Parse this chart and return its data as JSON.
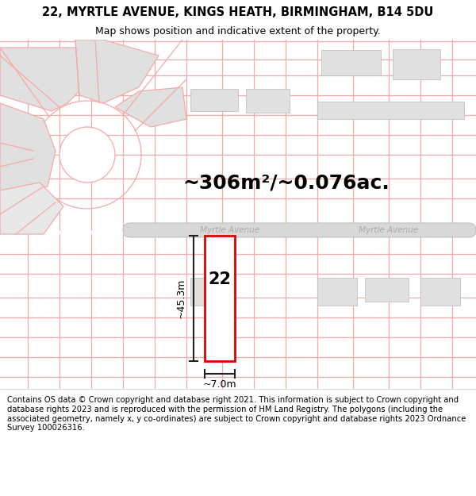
{
  "title": "22, MYRTLE AVENUE, KINGS HEATH, BIRMINGHAM, B14 5DU",
  "subtitle": "Map shows position and indicative extent of the property.",
  "footer": "Contains OS data © Crown copyright and database right 2021. This information is subject to Crown copyright and database rights 2023 and is reproduced with the permission of HM Land Registry. The polygons (including the associated geometry, namely x, y co-ordinates) are subject to Crown copyright and database rights 2023 Ordnance Survey 100026316.",
  "area_label": "~306m²/~0.076ac.",
  "road_label": "Myrtle Avenue",
  "road_label2": "Myrtle Avenue",
  "property_number": "22",
  "dim_height": "~45.3m",
  "dim_width": "~7.0m",
  "bg_color": "#ffffff",
  "map_bg": "#ffffff",
  "grid_line_color": "#f5aaaa",
  "property_outline_color": "#dd0000",
  "dim_line_color": "#222222",
  "title_fontsize": 10.5,
  "subtitle_fontsize": 9,
  "footer_fontsize": 7.2,
  "area_fontsize": 18
}
